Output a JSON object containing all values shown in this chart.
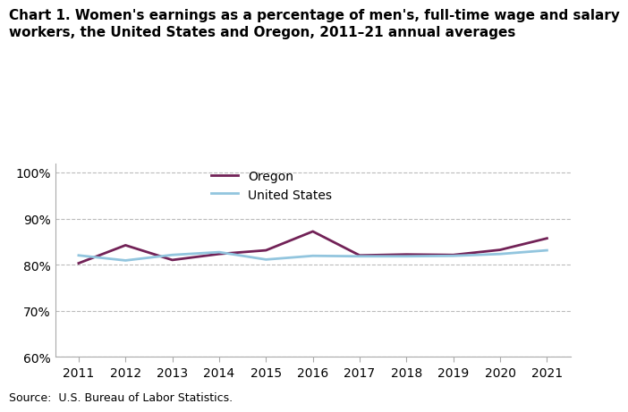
{
  "title_line1": "Chart 1. Women's earnings as a percentage of men's, full-time wage and salary",
  "title_line2": "workers, the United States and Oregon, 2011–21 annual averages",
  "years": [
    2011,
    2012,
    2013,
    2014,
    2015,
    2016,
    2017,
    2018,
    2019,
    2020,
    2021
  ],
  "oregon": [
    80.3,
    84.2,
    81.0,
    82.3,
    83.1,
    87.2,
    82.0,
    82.2,
    82.1,
    83.2,
    85.7
  ],
  "us": [
    82.0,
    80.9,
    82.1,
    82.7,
    81.1,
    81.9,
    81.8,
    81.8,
    81.9,
    82.3,
    83.1
  ],
  "oregon_color": "#722257",
  "us_color": "#92C5DE",
  "ylim": [
    60,
    102
  ],
  "yticks": [
    60,
    70,
    80,
    90,
    100
  ],
  "ytick_labels": [
    "60%",
    "70%",
    "80%",
    "90%",
    "100%"
  ],
  "tick_fontsize": 10,
  "title_fontsize": 11,
  "legend_fontsize": 10,
  "source_text": "Source:  U.S. Bureau of Labor Statistics.",
  "background_color": "#ffffff",
  "grid_color": "#bbbbbb",
  "line_width": 2.0
}
